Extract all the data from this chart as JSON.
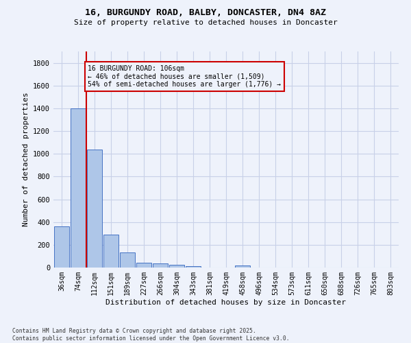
{
  "title_line1": "16, BURGUNDY ROAD, BALBY, DONCASTER, DN4 8AZ",
  "title_line2": "Size of property relative to detached houses in Doncaster",
  "xlabel": "Distribution of detached houses by size in Doncaster",
  "ylabel": "Number of detached properties",
  "categories": [
    "36sqm",
    "74sqm",
    "112sqm",
    "151sqm",
    "189sqm",
    "227sqm",
    "266sqm",
    "304sqm",
    "343sqm",
    "381sqm",
    "419sqm",
    "458sqm",
    "496sqm",
    "534sqm",
    "573sqm",
    "611sqm",
    "650sqm",
    "688sqm",
    "726sqm",
    "765sqm",
    "803sqm"
  ],
  "values": [
    360,
    1400,
    1040,
    290,
    130,
    42,
    35,
    22,
    15,
    0,
    0,
    18,
    0,
    0,
    0,
    0,
    0,
    0,
    0,
    0,
    0
  ],
  "bar_color": "#aec6e8",
  "bar_edge_color": "#4472c4",
  "ylim": [
    0,
    1900
  ],
  "yticks": [
    0,
    200,
    400,
    600,
    800,
    1000,
    1200,
    1400,
    1600,
    1800
  ],
  "property_line_x": 2,
  "property_line_color": "#cc0000",
  "annotation_text": "16 BURGUNDY ROAD: 106sqm\n← 46% of detached houses are smaller (1,509)\n54% of semi-detached houses are larger (1,776) →",
  "annotation_box_color": "#cc0000",
  "footer_text": "Contains HM Land Registry data © Crown copyright and database right 2025.\nContains public sector information licensed under the Open Government Licence v3.0.",
  "bg_color": "#eef2fb",
  "grid_color": "#c8d0e8"
}
